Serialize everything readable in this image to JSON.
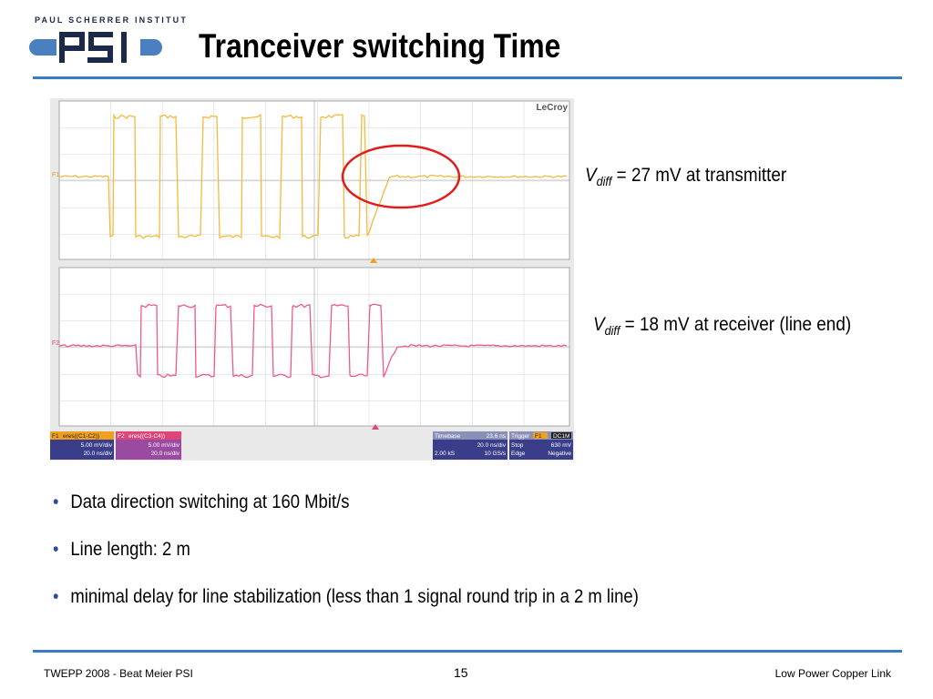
{
  "header": {
    "institute": "PAUL SCHERRER INSTITUT",
    "logo_text": "PSI",
    "title": "Tranceiver switching Time"
  },
  "scope": {
    "brand": "LeCroy",
    "ch1_label": "F1",
    "ch2_label": "F2",
    "f1": {
      "id": "F1",
      "name": "eres((C1-C2))",
      "vdiv": "5.00 mV/div",
      "tdiv": "20.0 ns/div"
    },
    "f2": {
      "id": "F2",
      "name": "eres((C3-C4))",
      "vdiv": "5.00 mV/div",
      "tdiv": "20.0 ns/div"
    },
    "timebase": {
      "label": "Timebase",
      "value": "23.6 ns",
      "tdiv": "20.0 ns/div",
      "samples": "2.00 kS",
      "rate": "10 GS/s"
    },
    "trigger": {
      "label": "Trigger",
      "chs": "F1",
      "chs2": "DC1M",
      "mode": "Stop",
      "level": "630 mV",
      "type": "Edge",
      "slope": "Negative"
    },
    "trace1_color": "#f5b93c",
    "trace2_color": "#ee5a8a",
    "highlight_color": "#e31b1b"
  },
  "annotations": {
    "tx": {
      "v": "V",
      "sub": "diff",
      "text": " = 27 mV at transmitter"
    },
    "rx": {
      "v": "V",
      "sub": "diff",
      "text": " = 18 mV at receiver (line end)"
    }
  },
  "bullets": [
    "Data direction switching at 160 Mbit/s",
    "Line length: 2 m",
    "minimal delay for line stabilization (less than 1 signal round trip in a 2 m line)"
  ],
  "footer": {
    "left": "TWEPP 2008 - Beat Meier PSI",
    "page": "15",
    "right": "Low Power Copper Link"
  }
}
